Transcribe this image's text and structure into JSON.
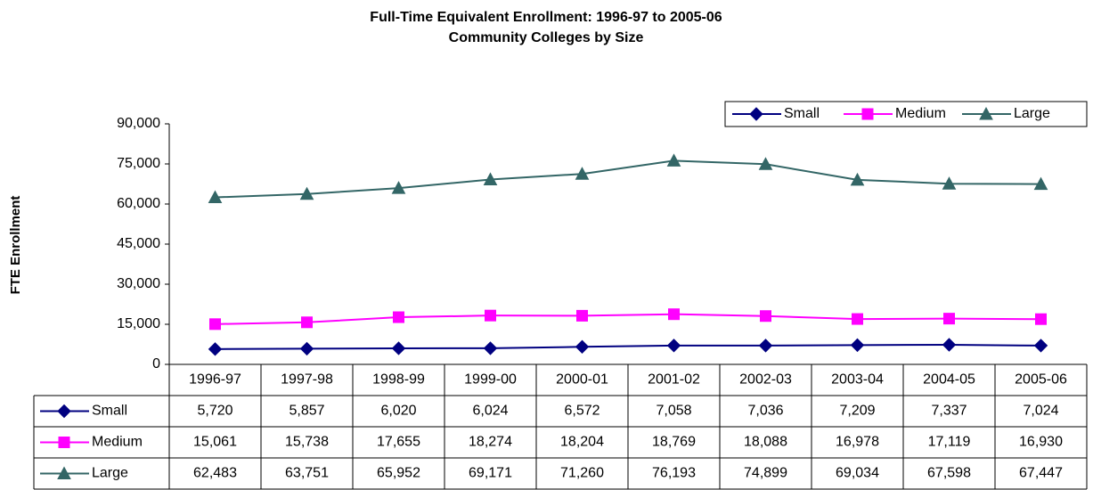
{
  "chart_data": {
    "type": "line",
    "title": "Full-Time Equivalent Enrollment: 1996-97 to 2005-06",
    "subtitle": "Community Colleges by Size",
    "y_label": "FTE Enrollment",
    "categories": [
      "1996-97",
      "1997-98",
      "1998-99",
      "1999-00",
      "2000-01",
      "2001-02",
      "2002-03",
      "2003-04",
      "2004-05",
      "2005-06"
    ],
    "series": [
      {
        "name": "Small",
        "color": "#000080",
        "marker": "diamond",
        "values": [
          5720,
          5857,
          6020,
          6024,
          6572,
          7058,
          7036,
          7209,
          7337,
          7024
        ],
        "value_labels": [
          "5,720",
          "5,857",
          "6,020",
          "6,024",
          "6,572",
          "7,058",
          "7,036",
          "7,209",
          "7,337",
          "7,024"
        ]
      },
      {
        "name": "Medium",
        "color": "#ff00ff",
        "marker": "square",
        "values": [
          15061,
          15738,
          17655,
          18274,
          18204,
          18769,
          18088,
          16978,
          17119,
          16930
        ],
        "value_labels": [
          "15,061",
          "15,738",
          "17,655",
          "18,274",
          "18,204",
          "18,769",
          "18,088",
          "16,978",
          "17,119",
          "16,930"
        ]
      },
      {
        "name": "Large",
        "color": "#336666",
        "marker": "triangle",
        "values": [
          62483,
          63751,
          65952,
          69171,
          71260,
          76193,
          74899,
          69034,
          67598,
          67447
        ],
        "value_labels": [
          "62,483",
          "63,751",
          "65,952",
          "69,171",
          "71,260",
          "76,193",
          "74,899",
          "69,034",
          "67,598",
          "67,447"
        ]
      }
    ],
    "ylim": [
      0,
      90000
    ],
    "yticks": [
      0,
      {
        "value": 15000,
        "label": "15,000"
      },
      {
        "value": 30000,
        "label": "30,000"
      },
      {
        "value": 45000,
        "label": "45,000"
      },
      {
        "value": 60000,
        "label": "60,000"
      },
      {
        "value": 75000,
        "label": "75,000"
      },
      {
        "value": 90000,
        "label": "90,000"
      }
    ],
    "grid": false,
    "legend": "top-right"
  }
}
